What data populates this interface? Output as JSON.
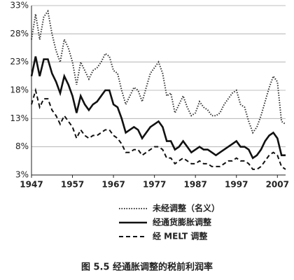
{
  "chart_data": {
    "type": "line",
    "title": "图 5.5   经通胀调整的税前利润率",
    "x": [
      1947,
      1948,
      1949,
      1950,
      1951,
      1952,
      1953,
      1954,
      1955,
      1956,
      1957,
      1958,
      1959,
      1960,
      1961,
      1962,
      1963,
      1964,
      1965,
      1966,
      1967,
      1968,
      1969,
      1970,
      1971,
      1972,
      1973,
      1974,
      1975,
      1976,
      1977,
      1978,
      1979,
      1980,
      1981,
      1982,
      1983,
      1984,
      1985,
      1986,
      1987,
      1988,
      1989,
      1990,
      1991,
      1992,
      1993,
      1994,
      1995,
      1996,
      1997,
      1998,
      1999,
      2000,
      2001,
      2002,
      2003,
      2004,
      2005,
      2006,
      2007,
      2008,
      2009
    ],
    "series": [
      {
        "name": "未经调整（名义）",
        "color": "#333333",
        "dash": "dotted",
        "values": [
          27,
          31.5,
          27,
          31,
          32,
          28,
          25,
          23,
          27,
          25.5,
          23,
          19,
          23,
          21.5,
          20,
          21.5,
          22,
          23,
          24.5,
          24,
          21.5,
          21,
          18,
          15.5,
          17,
          18.5,
          18,
          16,
          18.5,
          21,
          22,
          23,
          21,
          17,
          17.5,
          14,
          15.5,
          17,
          15,
          13.5,
          14,
          16,
          15,
          14.5,
          13.5,
          13.5,
          14,
          15.5,
          16.5,
          17.5,
          18,
          15.5,
          15,
          12.5,
          10.5,
          11.5,
          13.5,
          16,
          18.5,
          20.5,
          19.5,
          12.5,
          12
        ]
      },
      {
        "name": "经通货膨胀调整",
        "color": "#111111",
        "dash": "solid",
        "values": [
          20.5,
          24,
          20.5,
          23.5,
          23.5,
          21,
          19.5,
          17.5,
          20.5,
          19,
          17,
          14,
          17,
          15.5,
          14.5,
          15.5,
          16,
          17,
          18,
          18,
          15.5,
          15,
          13,
          10.5,
          11,
          11.5,
          11,
          9.5,
          10.5,
          11.5,
          12,
          12.5,
          11.5,
          9,
          9,
          7.5,
          8,
          9,
          8,
          7,
          7.5,
          8,
          7.5,
          7.5,
          7,
          6.5,
          7,
          7.5,
          8,
          8.5,
          9,
          8,
          8,
          7.5,
          6,
          6.5,
          7.5,
          9,
          10,
          10.5,
          9.5,
          6.5,
          6.5
        ]
      },
      {
        "name": "经 MELT 调整",
        "color": "#111111",
        "dash": "dashed",
        "values": [
          15.5,
          18,
          15,
          16.5,
          16.5,
          14.5,
          13.5,
          12,
          13.5,
          12.5,
          11.5,
          9.5,
          11,
          10,
          9.5,
          10,
          10,
          10.5,
          11,
          11,
          10,
          9.5,
          8.5,
          7,
          7,
          7.5,
          7.5,
          6.5,
          7,
          7.5,
          8,
          8,
          7.5,
          6,
          6,
          5,
          5.5,
          6,
          5.5,
          5,
          5,
          5.5,
          5,
          5,
          4.5,
          4.5,
          4.5,
          5,
          5.5,
          5.5,
          6,
          5.5,
          5.5,
          5,
          4,
          4,
          4.5,
          5.5,
          6.5,
          7,
          6.5,
          4.5,
          4
        ]
      }
    ],
    "xlim": [
      1947,
      2009
    ],
    "xticks": [
      1947,
      1957,
      1967,
      1977,
      1987,
      1997,
      2007
    ],
    "ylim": [
      3,
      33
    ],
    "yticks": [
      {
        "value": 3,
        "label": "3%"
      },
      {
        "value": 8,
        "label": "8%"
      },
      {
        "value": 13,
        "label": "13%"
      },
      {
        "value": 18,
        "label": "18%"
      },
      {
        "value": 23,
        "label": "23%"
      },
      {
        "value": 28,
        "label": "28%"
      },
      {
        "value": 33,
        "label": "33%"
      }
    ],
    "grid": true
  }
}
